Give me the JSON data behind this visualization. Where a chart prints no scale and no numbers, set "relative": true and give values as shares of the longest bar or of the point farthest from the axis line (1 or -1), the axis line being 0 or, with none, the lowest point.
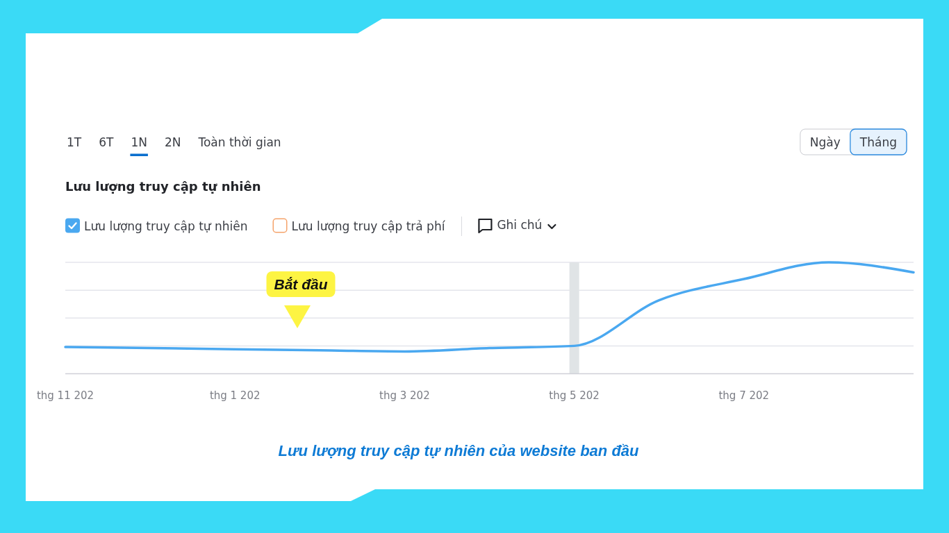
{
  "chart_data": {
    "type": "line",
    "title": "Lưu lượng truy cập tự nhiên",
    "relative": true,
    "categories": [
      "thg 11 202",
      null,
      "thg 1 202",
      null,
      "thg 3 202",
      null,
      "thg 5 202",
      null,
      "thg 7 202",
      null,
      null
    ],
    "series": [
      {
        "name": "Lưu lượng truy cập tự nhiên",
        "color": "#4aa8f0",
        "values": [
          0.24,
          0.23,
          0.22,
          0.21,
          0.2,
          0.23,
          0.25,
          0.66,
          0.85,
          1,
          0.91
        ]
      },
      {
        "name": "Lưu lượng truy cập trả phí",
        "color": "#f5a36b",
        "values": [
          null,
          null,
          null,
          null,
          null,
          null,
          null,
          null,
          null,
          null,
          null
        ]
      }
    ],
    "grid": "y",
    "legend": "top left",
    "ref_lines": [
      {
        "axis": "x",
        "value": "thg 5 202",
        "color": "#e0e4e6"
      }
    ],
    "annotations": [
      "1T",
      "6T",
      "1N",
      "2N",
      "Toàn thời gian",
      "Ngày",
      "Tháng",
      "Ghi chú",
      "Bắt đầu",
      "Lưu lượng truy cập tự nhiên của website ban đầu"
    ]
  }
}
